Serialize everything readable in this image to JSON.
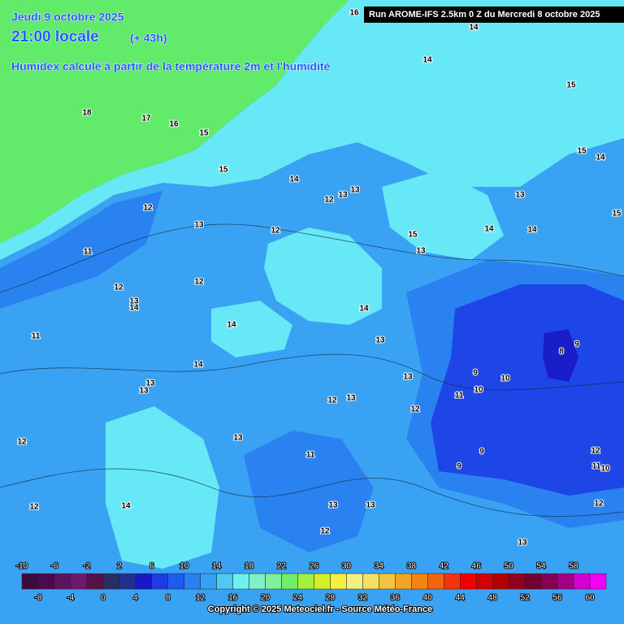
{
  "header": {
    "date": "Jeudi 9 octobre 2025",
    "time": "21:00 locale",
    "lead": "(+ 43h)",
    "subtitle": "Humidex calculé à partir de la température 2m et l'humidité"
  },
  "run": "Run AROME-IFS 2.5km 0 Z du Mercredi 8 octobre 2025",
  "contour_labels": [
    16,
    14,
    14,
    15,
    18,
    17,
    16,
    15,
    15,
    14,
    15,
    14,
    12,
    13,
    13,
    13,
    12,
    13,
    12,
    14,
    14,
    15,
    15,
    11,
    13,
    12,
    12,
    13,
    14,
    14,
    11,
    14,
    13,
    9,
    8,
    14,
    9,
    10,
    13,
    13,
    13,
    11,
    10,
    12,
    13,
    12,
    12,
    13,
    11,
    9,
    9,
    12,
    11,
    10,
    12,
    14,
    13,
    13,
    12,
    12,
    13
  ],
  "colorbar": {
    "top": [
      -10,
      -6,
      -2,
      2,
      6,
      10,
      14,
      18,
      22,
      26,
      30,
      34,
      38,
      42,
      46,
      50,
      54,
      58
    ],
    "bottom": [
      -8,
      -4,
      0,
      4,
      8,
      12,
      16,
      20,
      24,
      28,
      32,
      36,
      40,
      44,
      48,
      52,
      56,
      60
    ]
  },
  "copyright": "Copyright © 2025 Meteociel.fr - Source Météo-France"
}
